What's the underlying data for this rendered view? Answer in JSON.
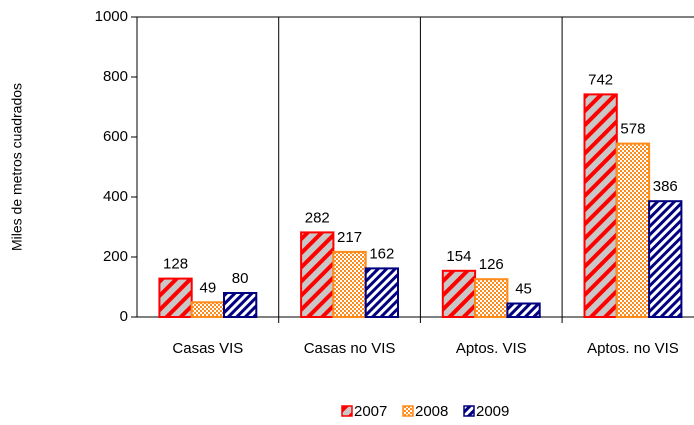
{
  "chart_data": {
    "type": "bar",
    "y_label": "Miles de metros cuadrados",
    "categories": [
      "Casas VIS",
      "Casas no VIS",
      "Aptos. VIS",
      "Aptos. no VIS"
    ],
    "series": [
      {
        "name": "2007",
        "color": "#ff0000",
        "values": [
          128,
          282,
          154,
          742
        ]
      },
      {
        "name": "2008",
        "color": "#ff8c1a",
        "values": [
          49,
          217,
          126,
          578
        ]
      },
      {
        "name": "2009",
        "color": "#000080",
        "values": [
          80,
          162,
          45,
          386
        ]
      }
    ],
    "ylim": [
      0,
      1000
    ],
    "yticks": [
      0,
      200,
      400,
      600,
      800,
      1000
    ],
    "legend": "bottom"
  }
}
